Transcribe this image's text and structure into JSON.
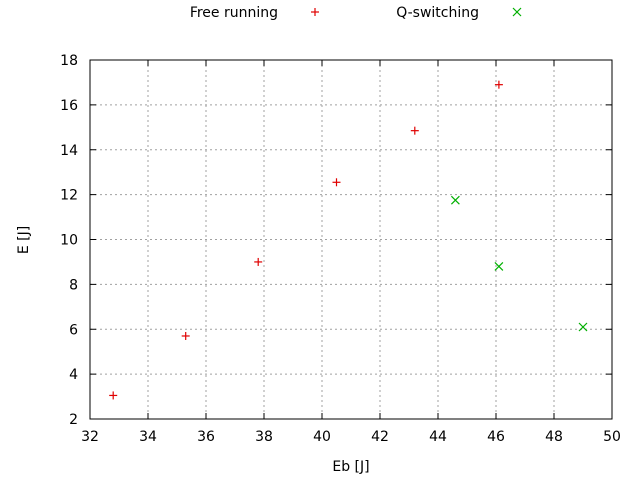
{
  "chart_data": {
    "type": "scatter",
    "title": "",
    "xlabel": "Eb [J]",
    "ylabel": "E [J]",
    "xlim": [
      32,
      50
    ],
    "ylim": [
      2,
      18
    ],
    "xticks": [
      32,
      34,
      36,
      38,
      40,
      42,
      44,
      46,
      48,
      50
    ],
    "yticks": [
      2,
      4,
      6,
      8,
      10,
      12,
      14,
      16,
      18
    ],
    "grid": true,
    "legend": "top-center",
    "series": [
      {
        "name": "Free running",
        "marker": "plus",
        "color": "#e00000",
        "points": [
          [
            32.8,
            3.05
          ],
          [
            35.3,
            5.7
          ],
          [
            37.8,
            9.0
          ],
          [
            40.5,
            12.55
          ],
          [
            43.2,
            14.85
          ],
          [
            46.1,
            16.9
          ]
        ]
      },
      {
        "name": "Q-switching",
        "marker": "cross",
        "color": "#00b000",
        "points": [
          [
            44.6,
            11.75
          ],
          [
            46.1,
            8.8
          ],
          [
            49.0,
            6.1
          ]
        ]
      }
    ]
  }
}
